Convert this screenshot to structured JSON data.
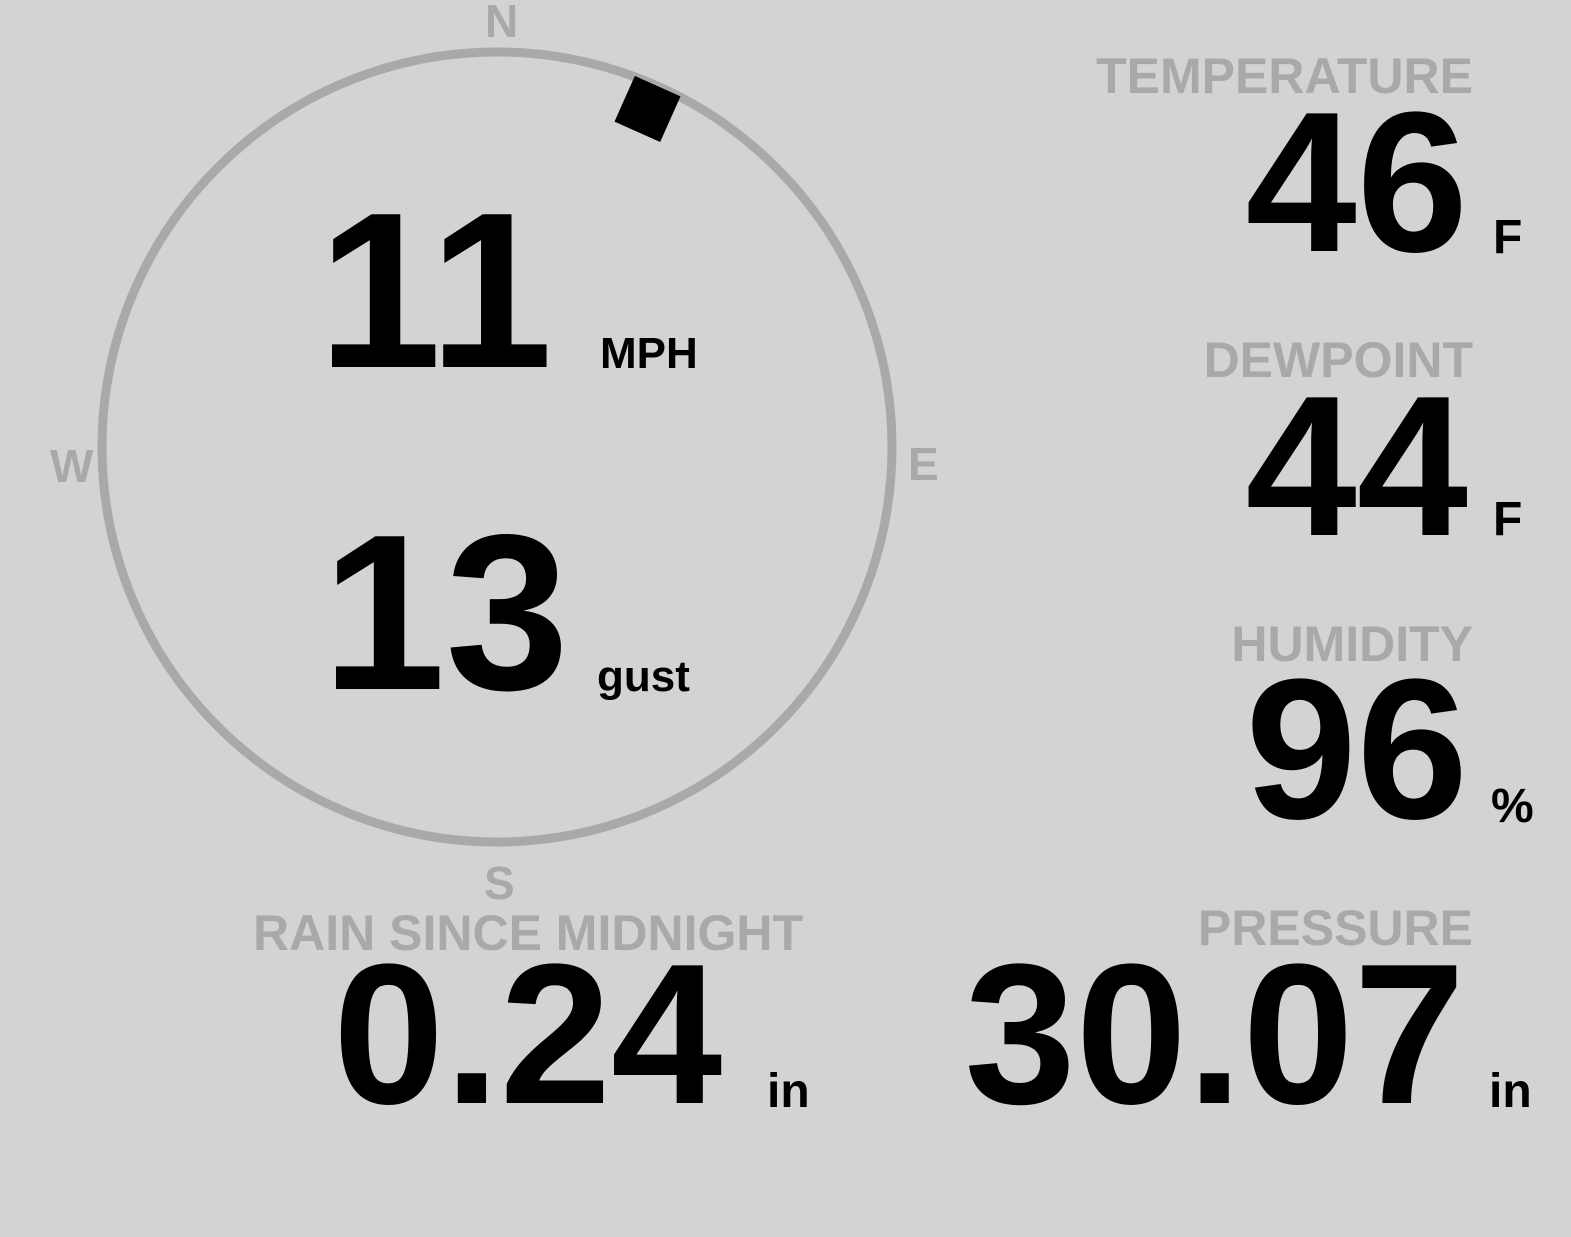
{
  "colors": {
    "background": "#d3d3d3",
    "ring": "#a9a9a9",
    "label": "#a9a9a9",
    "value": "#000000"
  },
  "compass": {
    "north": "N",
    "south": "S",
    "east": "E",
    "west": "W",
    "wind_direction_deg": 24
  },
  "wind": {
    "speed": "11",
    "speed_unit": "MPH",
    "gust": "13",
    "gust_unit": "gust"
  },
  "temperature": {
    "label": "TEMPERATURE",
    "value": "46",
    "unit": "F"
  },
  "dewpoint": {
    "label": "DEWPOINT",
    "value": "44",
    "unit": "F"
  },
  "humidity": {
    "label": "HUMIDITY",
    "value": "96",
    "unit": "%"
  },
  "rain": {
    "label": "RAIN SINCE MIDNIGHT",
    "value": "0.24",
    "unit": "in"
  },
  "pressure": {
    "label": "PRESSURE",
    "value": "30.07",
    "unit": "in"
  }
}
